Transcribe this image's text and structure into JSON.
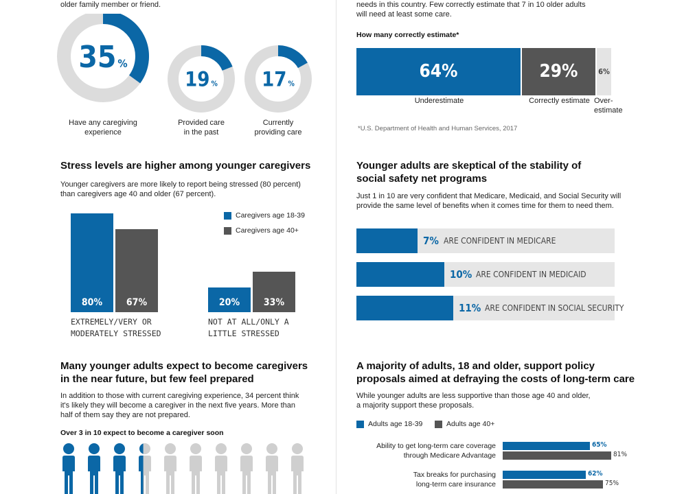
{
  "colors": {
    "blue": "#0b67a6",
    "dark": "#555555",
    "light": "#dcdcdc"
  },
  "top_left": {
    "intro_tail": "older family member or friend.",
    "donuts": [
      {
        "value": 35,
        "pct": "%",
        "label_lines": [
          "Have any caregiving",
          "experience"
        ]
      },
      {
        "value": 19,
        "pct": "%",
        "label_lines": [
          "Provided care",
          "in the past"
        ]
      },
      {
        "value": 17,
        "pct": "%",
        "label_lines": [
          "Currently",
          "providing care"
        ]
      }
    ]
  },
  "top_right": {
    "intro_lines": [
      "needs in this country. Few correctly estimate that 7 in 10 older adults",
      "will need at least some care."
    ],
    "subhead": "How many correctly estimate*",
    "footnote": "*U.S. Department of Health and Human Services, 2017"
  },
  "stress": {
    "title": "Stress levels are higher among younger caregivers",
    "body_lines": [
      "Younger caregivers are more likely to report being stressed (80 percent)",
      "than caregivers age 40 and older (67 percent)."
    ],
    "legend": [
      "Caregivers age 18-39",
      "Caregivers age 40+"
    ]
  },
  "safety": {
    "title_lines": [
      "Younger adults are skeptical of the stability of",
      "social safety net programs"
    ],
    "body_lines": [
      "Just 1 in 10 are very confident that Medicare, Medicaid, and Social Security will",
      "provide the same level of benefits when it comes time for them to need them."
    ]
  },
  "expect": {
    "title_lines": [
      "Many younger adults expect to become caregivers",
      "in the near future, but few feel prepared"
    ],
    "body_lines": [
      "In addition to those with current caregiving experience, 34 percent think",
      "it's likely they will become a caregiver in the next five years. More than",
      "half of them say they are not prepared."
    ],
    "subhead": "Over 3 in 10 expect to become a caregiver soon",
    "people_total": 10,
    "people_filled": 3.4
  },
  "policy": {
    "title_lines": [
      "A majority of adults, 18 and older, support policy",
      "proposals aimed at defraying the costs of long-term care"
    ],
    "body_lines": [
      "While younger adults are less supportive than those age 40 and older,",
      "a majority support these proposals."
    ],
    "legend": [
      "Adults age 18-39",
      "Adults age 40+"
    ]
  },
  "chart_data": [
    {
      "type": "bar",
      "orientation": "horizontal-stacked",
      "title": "How many correctly estimate*",
      "categories": [
        "Underestimate",
        "Correctly estimate",
        "Over-estimate"
      ],
      "values": [
        64,
        29,
        6
      ],
      "labels": [
        "64%",
        "29%",
        "6%"
      ]
    },
    {
      "type": "bar",
      "categories": [
        "Extremely/very or moderately stressed",
        "Not at all/only a little stressed"
      ],
      "category_lines": [
        [
          "Extremely/very or",
          "moderately stressed"
        ],
        [
          "Not at all/only a",
          "little stressed"
        ]
      ],
      "series": [
        {
          "name": "Caregivers age 18-39",
          "values": [
            80,
            20
          ],
          "labels": [
            "80%",
            "20%"
          ]
        },
        {
          "name": "Caregivers age 40+",
          "values": [
            67,
            33
          ],
          "labels": [
            "67%",
            "33%"
          ]
        }
      ],
      "ylim": [
        0,
        80
      ],
      "legend": "top-right"
    },
    {
      "type": "bar",
      "orientation": "horizontal",
      "categories": [
        "Are confident in Medicare",
        "Are confident in Medicaid",
        "Are confident in Social Security"
      ],
      "values": [
        7,
        10,
        11
      ],
      "labels": [
        "7%",
        "10%",
        "11%"
      ],
      "xlim": [
        0,
        100
      ]
    },
    {
      "type": "bar",
      "orientation": "horizontal",
      "categories": [
        "Ability to get long-term care coverage through Medicare Advantage",
        "Tax breaks for purchasing long-term care insurance"
      ],
      "category_lines": [
        [
          "Ability to get long-term care coverage",
          "through Medicare Advantage"
        ],
        [
          "Tax breaks for purchasing",
          "long-term care insurance"
        ]
      ],
      "series": [
        {
          "name": "Adults age 18-39",
          "values": [
            65,
            62
          ],
          "labels": [
            "65%",
            "62%"
          ]
        },
        {
          "name": "Adults age 40+",
          "values": [
            81,
            75
          ],
          "labels": [
            "81%",
            "75%"
          ]
        }
      ],
      "legend": "top-left"
    }
  ]
}
